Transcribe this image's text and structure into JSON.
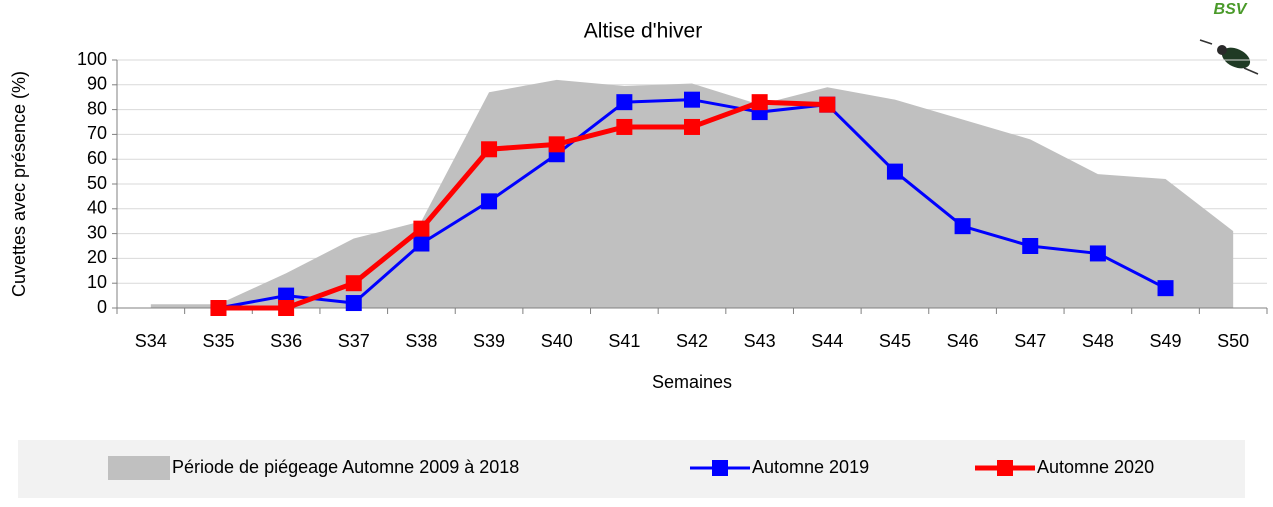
{
  "chart_data": {
    "type": "line",
    "title": "Altise d'hiver",
    "logo": "BSV",
    "y_label": "Cuvettes avec présence (%)",
    "x_label": "Semaines",
    "categories": [
      "S34",
      "S35",
      "S36",
      "S37",
      "S38",
      "S39",
      "S40",
      "S41",
      "S42",
      "S43",
      "S44",
      "S45",
      "S46",
      "S47",
      "S48",
      "S49",
      "S50"
    ],
    "ylim": [
      0,
      100
    ],
    "yticks": [
      0,
      10,
      20,
      30,
      40,
      50,
      60,
      70,
      80,
      90,
      100
    ],
    "grid": true,
    "legend": "bottom",
    "series": [
      {
        "name": "Période de piégeage Automne 2009 à 2018",
        "kind": "area",
        "color": "#c0c0c0",
        "values": [
          1.5,
          1.5,
          14,
          28,
          35,
          87,
          92,
          89.5,
          90.5,
          82,
          89,
          84,
          76,
          68,
          54,
          52,
          31
        ]
      },
      {
        "name": "Automne 2019",
        "kind": "line",
        "color": "#0000ff",
        "values": [
          null,
          0,
          5,
          2,
          26,
          43,
          62,
          83,
          84,
          79,
          82,
          55,
          33,
          25,
          22,
          8,
          null
        ]
      },
      {
        "name": "Automne 2020",
        "kind": "line",
        "color": "#ff0000",
        "values": [
          null,
          0,
          0,
          10,
          32,
          64,
          66,
          73,
          73,
          83,
          82,
          null,
          null,
          null,
          null,
          null,
          null
        ]
      }
    ]
  }
}
